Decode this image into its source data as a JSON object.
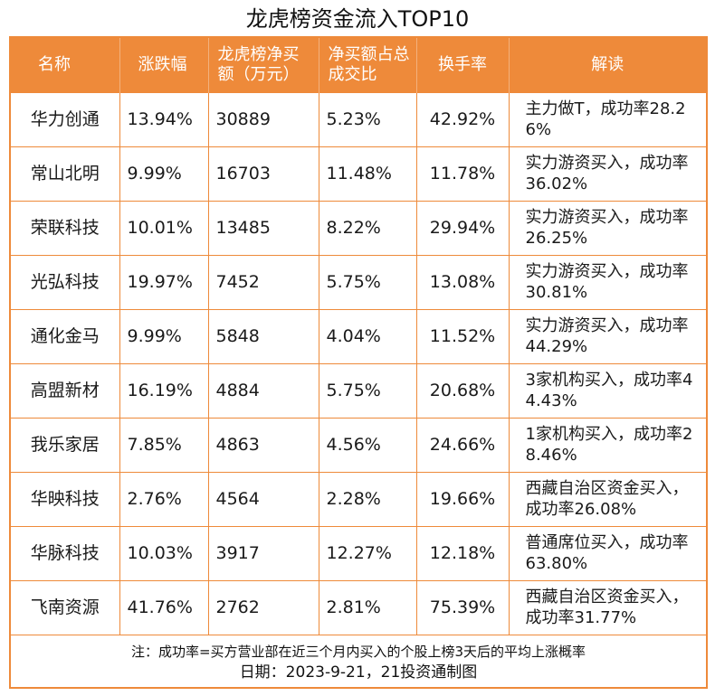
{
  "title": "龙虎榜资金流入TOP10",
  "columns": {
    "name": "名称",
    "change": "涨跌幅",
    "net_buy": "龙虎榜净买额（万元）",
    "net_ratio": "净买额占总成交比",
    "turnover": "换手率",
    "remark": "解读"
  },
  "rows": [
    {
      "name": "华力创通",
      "change": "13.94%",
      "net_buy": "30889",
      "net_ratio": "5.23%",
      "turnover": "42.92%",
      "remark": "主力做T，成功率28.26%"
    },
    {
      "name": "常山北明",
      "change": "9.99%",
      "net_buy": "16703",
      "net_ratio": "11.48%",
      "turnover": "11.78%",
      "remark": "实力游资买入，成功率36.02%"
    },
    {
      "name": "荣联科技",
      "change": "10.01%",
      "net_buy": "13485",
      "net_ratio": "8.22%",
      "turnover": "29.94%",
      "remark": "实力游资买入，成功率26.25%"
    },
    {
      "name": "光弘科技",
      "change": "19.97%",
      "net_buy": "7452",
      "net_ratio": "5.75%",
      "turnover": "13.08%",
      "remark": "实力游资买入，成功率30.81%"
    },
    {
      "name": "通化金马",
      "change": "9.99%",
      "net_buy": "5848",
      "net_ratio": "4.04%",
      "turnover": "11.52%",
      "remark": "实力游资买入，成功率44.29%"
    },
    {
      "name": "高盟新材",
      "change": "16.19%",
      "net_buy": "4884",
      "net_ratio": "5.75%",
      "turnover": "20.68%",
      "remark": "3家机构买入，成功率44.43%"
    },
    {
      "name": "我乐家居",
      "change": "7.85%",
      "net_buy": "4863",
      "net_ratio": "4.56%",
      "turnover": "24.66%",
      "remark": "1家机构买入，成功率28.46%"
    },
    {
      "name": "华映科技",
      "change": "2.76%",
      "net_buy": "4564",
      "net_ratio": "2.28%",
      "turnover": "19.66%",
      "remark": "西藏自治区资金买入，成功率26.08%"
    },
    {
      "name": "华脉科技",
      "change": "10.03%",
      "net_buy": "3917",
      "net_ratio": "12.27%",
      "turnover": "12.18%",
      "remark": "普通席位买入，成功率63.80%"
    },
    {
      "name": "飞南资源",
      "change": "41.76%",
      "net_buy": "2762",
      "net_ratio": "2.81%",
      "turnover": "75.39%",
      "remark": "西藏自治区资金买入，成功率31.77%"
    }
  ],
  "footer": {
    "note": "注：成功率=买方营业部在近三个月内买入的个股上榜3天后的平均上涨概率",
    "date": "日期：2023-9-21，21投资通制图"
  },
  "colors": {
    "accent": "#ee8a3a",
    "header_text": "#ffffff"
  }
}
